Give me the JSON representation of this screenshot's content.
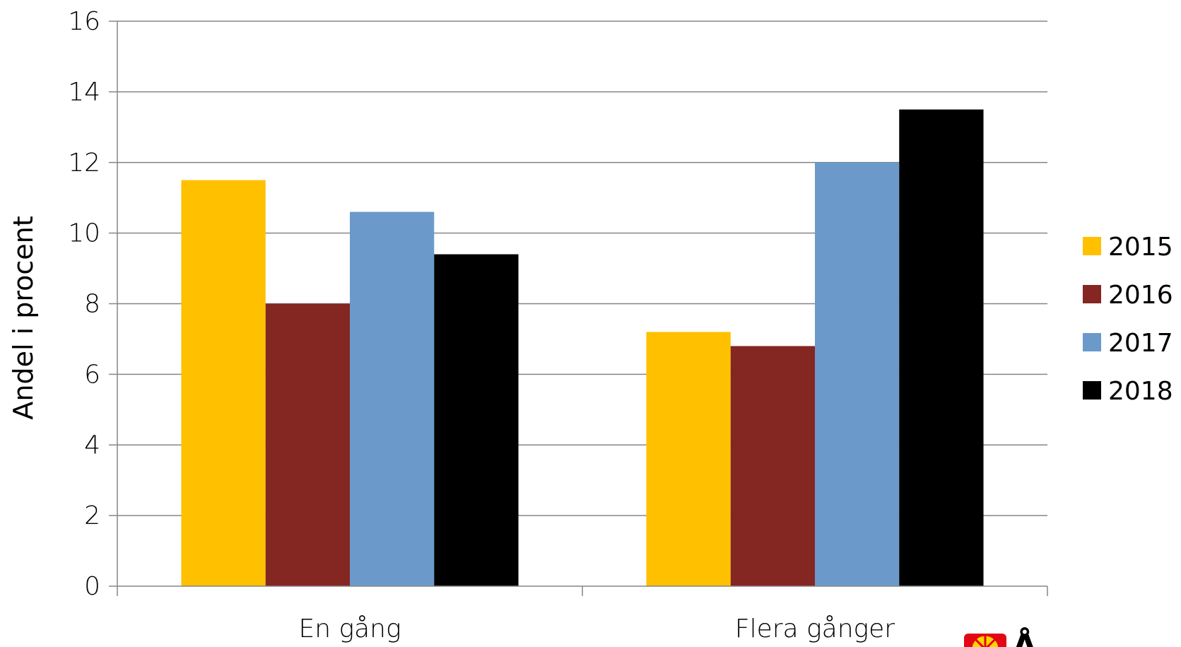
{
  "chart_data": {
    "type": "bar",
    "title": "",
    "xlabel": "",
    "ylabel": "Andel i procent",
    "ylim": [
      0,
      16
    ],
    "yticks": [
      0,
      2,
      4,
      6,
      8,
      10,
      12,
      14,
      16
    ],
    "grid": true,
    "legend_position": "right",
    "categories": [
      "En gång",
      "Flera gånger"
    ],
    "series": [
      {
        "name": "2015",
        "values": [
          11.5,
          7.2
        ],
        "color": "#FFC000"
      },
      {
        "name": "2016",
        "values": [
          8.0,
          6.8
        ],
        "color": "#842622"
      },
      {
        "name": "2017",
        "values": [
          10.6,
          12.0
        ],
        "color": "#6B9ACA"
      },
      {
        "name": "2018",
        "values": [
          9.4,
          13.5
        ],
        "color": "#000000"
      }
    ]
  },
  "logo": {
    "text": "Å",
    "icon": "sun-wheel-icon",
    "colors": {
      "outer": "#E30613",
      "inner": "#FFD200"
    }
  }
}
